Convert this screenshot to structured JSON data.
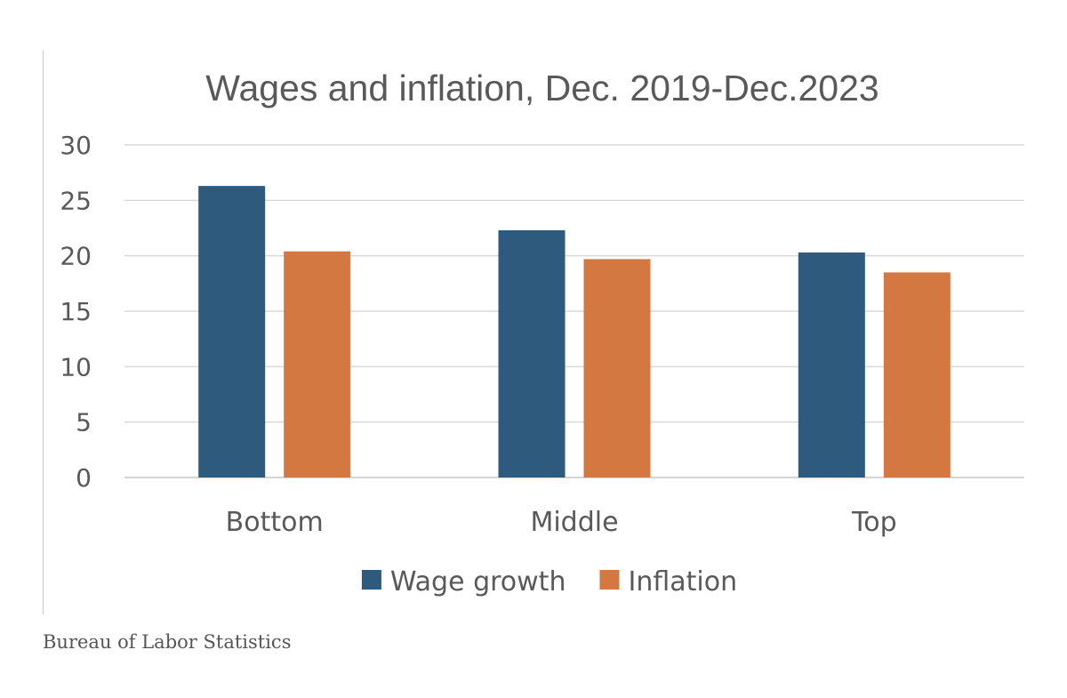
{
  "chart_data": {
    "type": "bar",
    "title": "Wages and inflation, Dec. 2019-Dec.2023",
    "xlabel": "",
    "ylabel": "",
    "categories": [
      "Bottom",
      "Middle",
      "Top"
    ],
    "series": [
      {
        "name": "Wage growth",
        "color": "#2e5b7d",
        "values": [
          26.3,
          22.3,
          20.3
        ]
      },
      {
        "name": "Inflation",
        "color": "#d47841",
        "values": [
          20.4,
          19.7,
          18.5
        ]
      }
    ],
    "ylim": [
      0,
      30
    ],
    "yticks": [
      0,
      5,
      10,
      15,
      20,
      25,
      30
    ],
    "grid": true,
    "legend_position": "bottom"
  },
  "source": "Bureau of Labor Statistics"
}
